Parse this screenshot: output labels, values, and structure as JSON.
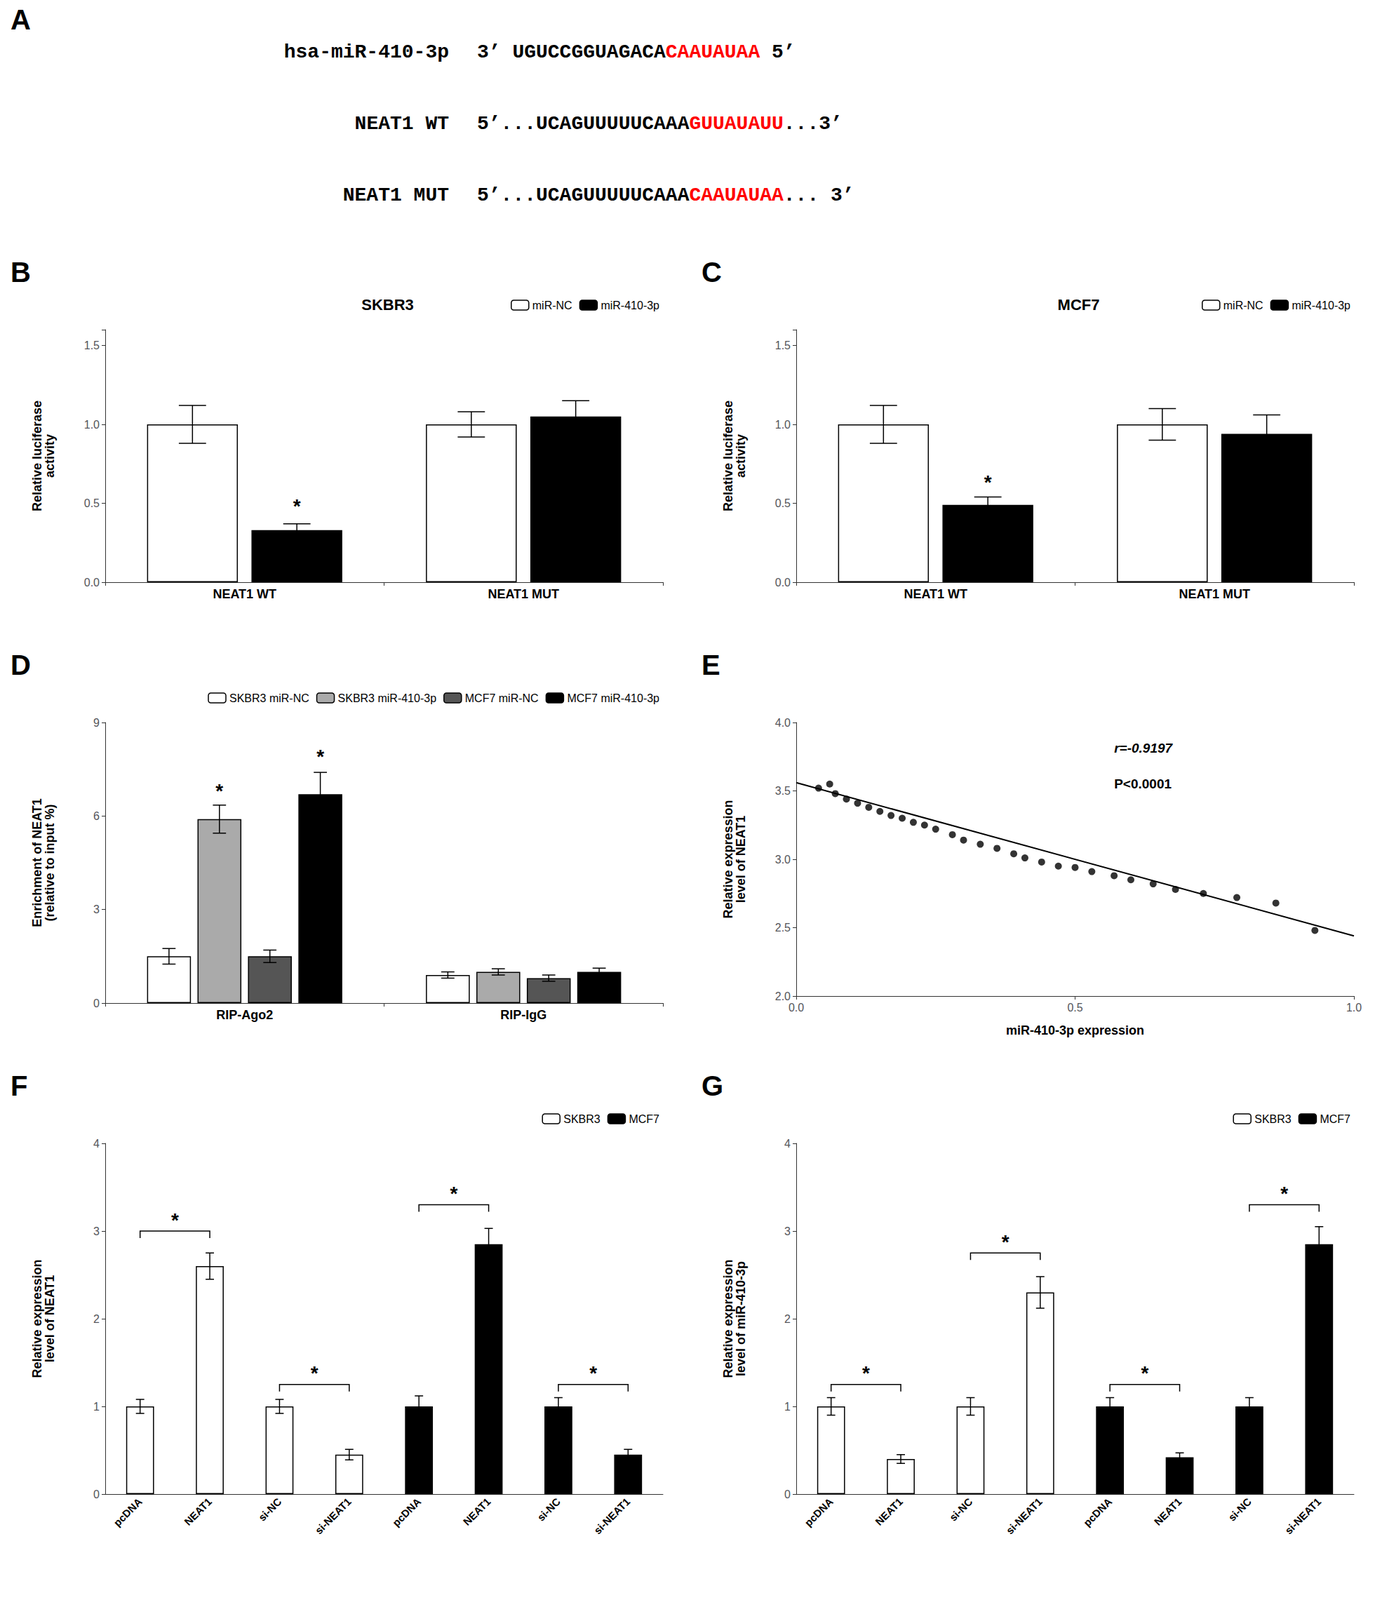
{
  "chart_data": [
    {
      "type": "text",
      "panel_label": "A",
      "lines": [
        {
          "label": "hsa-miR-410-3p",
          "segments": [
            {
              "text": "3’ UGUCCGGUAGACA",
              "color": "black"
            },
            {
              "text": "CAAUAUAA",
              "color": "red"
            },
            {
              "text": " 5’",
              "color": "black"
            }
          ]
        },
        {
          "label": "NEAT1 WT",
          "segments": [
            {
              "text": "5’...UCAGUUUUUCAAA",
              "color": "black"
            },
            {
              "text": "GUUAUAUU",
              "color": "red"
            },
            {
              "text": "...3’",
              "color": "black"
            }
          ]
        },
        {
          "label": "NEAT1 MUT",
          "segments": [
            {
              "text": "5’...UCAGUUUUUCAAA",
              "color": "black"
            },
            {
              "text": "CAAUAUAA",
              "color": "red"
            },
            {
              "text": "... 3’",
              "color": "black"
            }
          ]
        }
      ]
    },
    {
      "type": "bar",
      "panel_label": "B",
      "title": "SKBR3",
      "categories": [
        "NEAT1 WT",
        "NEAT1 MUT"
      ],
      "series": [
        {
          "name": "miR-NC",
          "color": "white",
          "values": [
            1.0,
            1.0
          ],
          "errors": [
            0.12,
            0.08
          ]
        },
        {
          "name": "miR-410-3p",
          "color": "black",
          "values": [
            0.33,
            1.05
          ],
          "errors": [
            0.04,
            0.1
          ]
        }
      ],
      "ylabel": "Relative luciferase\nactivity",
      "ylim": [
        0,
        1.6
      ],
      "yticks": [
        {
          "value": 0.0,
          "label": "0.0"
        },
        0.5,
        {
          "value": 1.0,
          "label": "1.0"
        },
        1.5
      ],
      "annotations": [
        {
          "text": "*",
          "category": "NEAT1 WT",
          "series": "miR-410-3p",
          "y": 0.42
        }
      ],
      "legend": "upper right",
      "grid": false
    },
    {
      "type": "bar",
      "panel_label": "C",
      "title": "MCF7",
      "categories": [
        "NEAT1 WT",
        "NEAT1 MUT"
      ],
      "series": [
        {
          "name": "miR-NC",
          "color": "white",
          "values": [
            1.0,
            1.0
          ],
          "errors": [
            0.12,
            0.1
          ]
        },
        {
          "name": "miR-410-3p",
          "color": "black",
          "values": [
            0.49,
            0.94
          ],
          "errors": [
            0.05,
            0.12
          ]
        }
      ],
      "ylabel": "Relative luciferase\nactivity",
      "ylim": [
        0,
        1.6
      ],
      "yticks": [
        {
          "value": 0.0,
          "label": "0.0"
        },
        0.5,
        {
          "value": 1.0,
          "label": "1.0"
        },
        1.5
      ],
      "annotations": [
        {
          "text": "*",
          "category": "NEAT1 WT",
          "series": "miR-410-3p",
          "y": 0.57
        }
      ],
      "legend": "upper right",
      "grid": false
    },
    {
      "type": "bar",
      "panel_label": "D",
      "categories": [
        "RIP-Ago2",
        "RIP-IgG"
      ],
      "series": [
        {
          "name": "SKBR3 miR-NC",
          "color": "white",
          "values": [
            1.5,
            0.9
          ],
          "errors": [
            0.25,
            0.1
          ]
        },
        {
          "name": "SKBR3 miR-410-3p",
          "color": "#aaaaaa",
          "values": [
            5.9,
            1.0
          ],
          "errors": [
            0.45,
            0.1
          ]
        },
        {
          "name": "MCF7 miR-NC",
          "color": "#555555",
          "values": [
            1.5,
            0.8
          ],
          "errors": [
            0.2,
            0.1
          ]
        },
        {
          "name": "MCF7 miR-410-3p",
          "color": "black",
          "values": [
            6.7,
            1.0
          ],
          "errors": [
            0.7,
            0.12
          ]
        }
      ],
      "ylabel": "Enrichment of NEAT1\n(relative to input %)",
      "ylim": [
        0,
        9
      ],
      "yticks": [
        0,
        3,
        6,
        9
      ],
      "annotations": [
        {
          "text": "*",
          "category": "RIP-Ago2",
          "series": "SKBR3 miR-410-3p",
          "y": 6.5
        },
        {
          "text": "*",
          "category": "RIP-Ago2",
          "series": "MCF7 miR-410-3p",
          "y": 7.6
        }
      ],
      "legend": "upper right",
      "grid": false
    },
    {
      "type": "scatter",
      "panel_label": "E",
      "series": [
        {
          "type": "scatter",
          "color": "black",
          "x": [
            0.04,
            0.06,
            0.07,
            0.09,
            0.11,
            0.13,
            0.15,
            0.17,
            0.19,
            0.21,
            0.23,
            0.25,
            0.28,
            0.3,
            0.33,
            0.36,
            0.39,
            0.41,
            0.44,
            0.47,
            0.5,
            0.53,
            0.57,
            0.6,
            0.64,
            0.68,
            0.73,
            0.79,
            0.86,
            0.93
          ],
          "values": [
            3.52,
            3.55,
            3.48,
            3.44,
            3.41,
            3.38,
            3.35,
            3.32,
            3.3,
            3.27,
            3.25,
            3.22,
            3.18,
            3.14,
            3.11,
            3.08,
            3.04,
            3.01,
            2.98,
            2.95,
            2.94,
            2.91,
            2.88,
            2.85,
            2.82,
            2.78,
            2.75,
            2.72,
            2.68,
            2.48
          ]
        },
        {
          "type": "line",
          "color": "black",
          "x": [
            0.0,
            1.0
          ],
          "values": [
            3.56,
            2.44
          ]
        }
      ],
      "xlabel": "miR-410-3p expression",
      "ylabel": "Relative expression\nlevel of NEAT1",
      "xlim": [
        0.0,
        1.0
      ],
      "ylim": [
        2.0,
        4.0
      ],
      "xticks": [
        {
          "value": 0.0,
          "label": "0.0"
        },
        0.5,
        {
          "value": 1.0,
          "label": "1.0"
        }
      ],
      "yticks": [
        {
          "value": 2.0,
          "label": "2.0"
        },
        2.5,
        {
          "value": 3.0,
          "label": "3.0"
        },
        3.5,
        {
          "value": 4.0,
          "label": "4.0"
        }
      ],
      "annotations": [
        "r=-0.9197",
        "P<0.0001"
      ],
      "grid": false
    },
    {
      "type": "bar",
      "panel_label": "F",
      "categories": [
        "pcDNA",
        "NEAT1",
        "si-NC",
        "si-NEAT1",
        "pcDNA",
        "NEAT1",
        "si-NC",
        "si-NEAT1"
      ],
      "series": [
        {
          "name": "SKBR3",
          "color": "white",
          "values": [
            1.0,
            2.6,
            1.0,
            0.45,
            null,
            null,
            null,
            null
          ],
          "errors": [
            0.08,
            0.15,
            0.08,
            0.06,
            null,
            null,
            null,
            null
          ]
        },
        {
          "name": "MCF7",
          "color": "black",
          "values": [
            null,
            null,
            null,
            null,
            1.0,
            2.85,
            1.0,
            0.45
          ],
          "errors": [
            null,
            null,
            null,
            null,
            0.12,
            0.18,
            0.1,
            0.06
          ]
        }
      ],
      "ylabel": "Relative expression\nlevel of NEAT1",
      "ylim": [
        0,
        4
      ],
      "yticks": [
        0,
        1,
        2,
        3,
        4
      ],
      "significance": [
        {
          "x1": 0,
          "x2": 1,
          "y": 3.0,
          "text": "*"
        },
        {
          "x1": 2,
          "x2": 3,
          "y": 1.25,
          "text": "*"
        },
        {
          "x1": 4,
          "x2": 5,
          "y": 3.3,
          "text": "*"
        },
        {
          "x1": 6,
          "x2": 7,
          "y": 1.25,
          "text": "*"
        }
      ],
      "legend": "upper right",
      "grid": false
    },
    {
      "type": "bar",
      "panel_label": "G",
      "categories": [
        "pcDNA",
        "NEAT1",
        "si-NC",
        "si-NEAT1",
        "pcDNA",
        "NEAT1",
        "si-NC",
        "si-NEAT1"
      ],
      "series": [
        {
          "name": "SKBR3",
          "color": "white",
          "values": [
            1.0,
            0.4,
            1.0,
            2.3,
            null,
            null,
            null,
            null
          ],
          "errors": [
            0.1,
            0.05,
            0.1,
            0.18,
            null,
            null,
            null,
            null
          ]
        },
        {
          "name": "MCF7",
          "color": "black",
          "values": [
            null,
            null,
            null,
            null,
            1.0,
            0.42,
            1.0,
            2.85
          ],
          "errors": [
            null,
            null,
            null,
            null,
            0.1,
            0.05,
            0.1,
            0.2
          ]
        }
      ],
      "ylabel": "Relative expression\nlevel of miR-410-3p",
      "ylim": [
        0,
        4
      ],
      "yticks": [
        0,
        1,
        2,
        3,
        4
      ],
      "significance": [
        {
          "x1": 0,
          "x2": 1,
          "y": 1.25,
          "text": "*"
        },
        {
          "x1": 2,
          "x2": 3,
          "y": 2.75,
          "text": "*"
        },
        {
          "x1": 4,
          "x2": 5,
          "y": 1.25,
          "text": "*"
        },
        {
          "x1": 6,
          "x2": 7,
          "y": 3.3,
          "text": "*"
        }
      ],
      "legend": "upper right",
      "grid": false
    }
  ]
}
